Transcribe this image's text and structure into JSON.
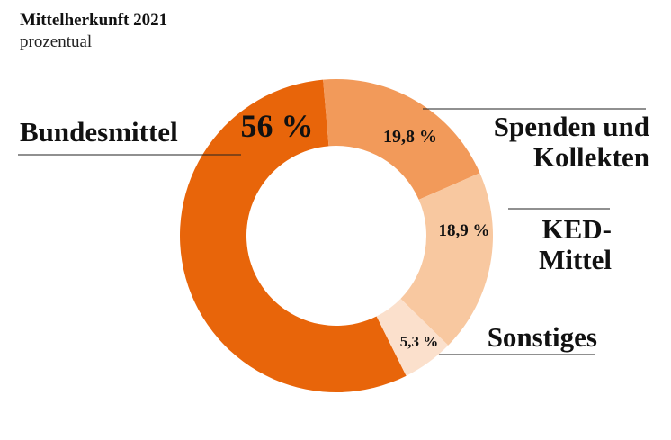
{
  "chart_data": {
    "type": "donut",
    "title": "Mittelherkunft 2021",
    "subtitle": "prozentual",
    "categories": [
      "Bundesmittel",
      "Spenden und Kollekten",
      "KED-Mittel",
      "Sonstiges"
    ],
    "values": [
      56,
      19.8,
      18.9,
      5.3
    ],
    "value_labels": [
      "56 %",
      "19,8 %",
      "18,9 %",
      "5,3 %"
    ],
    "colors": [
      "#e8650a",
      "#f29a5a",
      "#f8c8a0",
      "#fbe0cc"
    ]
  }
}
